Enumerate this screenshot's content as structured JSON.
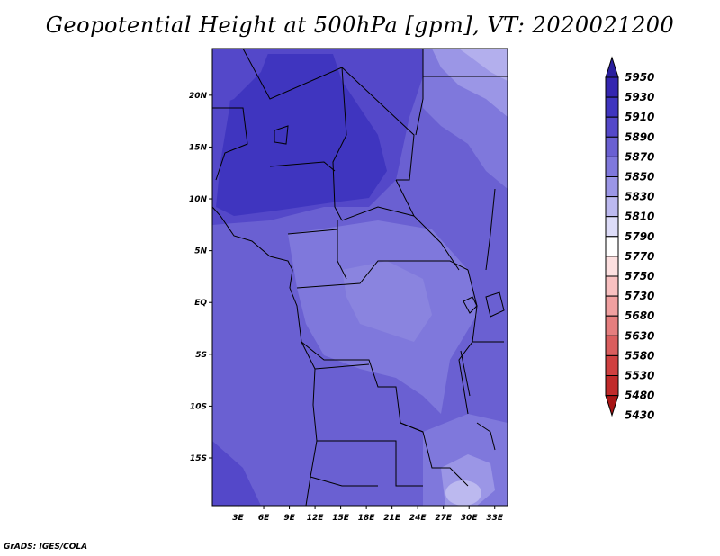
{
  "title": "Geopotential Height at 500hPa [gpm], VT: 2020021200",
  "footer": "GrADS: IGES/COLA",
  "map": {
    "lat_labels": [
      "20N",
      "15N",
      "10N",
      "5N",
      "EQ",
      "5S",
      "10S",
      "15S"
    ],
    "lat_values": [
      20,
      15,
      10,
      5,
      0,
      -5,
      -10,
      -15
    ],
    "lon_labels": [
      "3E",
      "6E",
      "9E",
      "12E",
      "15E",
      "18E",
      "21E",
      "24E",
      "27E",
      "30E",
      "33E"
    ],
    "lon_values": [
      3,
      6,
      9,
      12,
      15,
      18,
      21,
      24,
      27,
      30,
      33
    ]
  },
  "colorbar": {
    "levels": [
      "5950",
      "5930",
      "5910",
      "5890",
      "5870",
      "5850",
      "5830",
      "5810",
      "5790",
      "5770",
      "5750",
      "5730",
      "5680",
      "5630",
      "5580",
      "5530",
      "5480",
      "5430"
    ],
    "colors": [
      "#2a1f9e",
      "#3426b0",
      "#3f35bf",
      "#5448c9",
      "#6a60d2",
      "#7f78dc",
      "#9b96e6",
      "#bcb9ef",
      "#dddcf8",
      "#ffffff",
      "#fde0e0",
      "#f8c0c0",
      "#f0a0a0",
      "#e57e7e",
      "#da5e5e",
      "#cf4040",
      "#c02a2a",
      "#a81515"
    ]
  }
}
